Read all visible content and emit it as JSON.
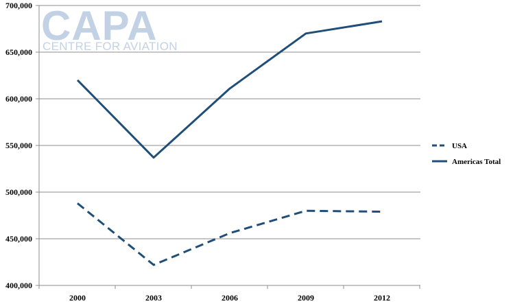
{
  "chart_data": {
    "type": "line",
    "title": "",
    "xlabel": "",
    "ylabel": "",
    "categories": [
      "2000",
      "2003",
      "2006",
      "2009",
      "2012"
    ],
    "ylim": [
      400000,
      700000
    ],
    "yticks": [
      400000,
      450000,
      500000,
      550000,
      600000,
      650000,
      700000
    ],
    "ytick_labels": [
      "400,000",
      "450,000",
      "500,000",
      "550,000",
      "600,000",
      "650,000",
      "700,000"
    ],
    "grid": "horizontal",
    "legend_position": "right",
    "series": [
      {
        "name": "USA",
        "values": [
          488000,
          422000,
          456000,
          480000,
          479000
        ],
        "line_style": "dashed",
        "color": "#1f4e79"
      },
      {
        "name": "Americas Total",
        "values": [
          620000,
          537000,
          611000,
          670000,
          683000
        ],
        "line_style": "solid",
        "color": "#1f4e79"
      }
    ]
  },
  "watermark": {
    "logo_text": "CAPA",
    "logo_subtext": "CENTRE FOR AVIATION",
    "color": "#b8cbe0"
  }
}
